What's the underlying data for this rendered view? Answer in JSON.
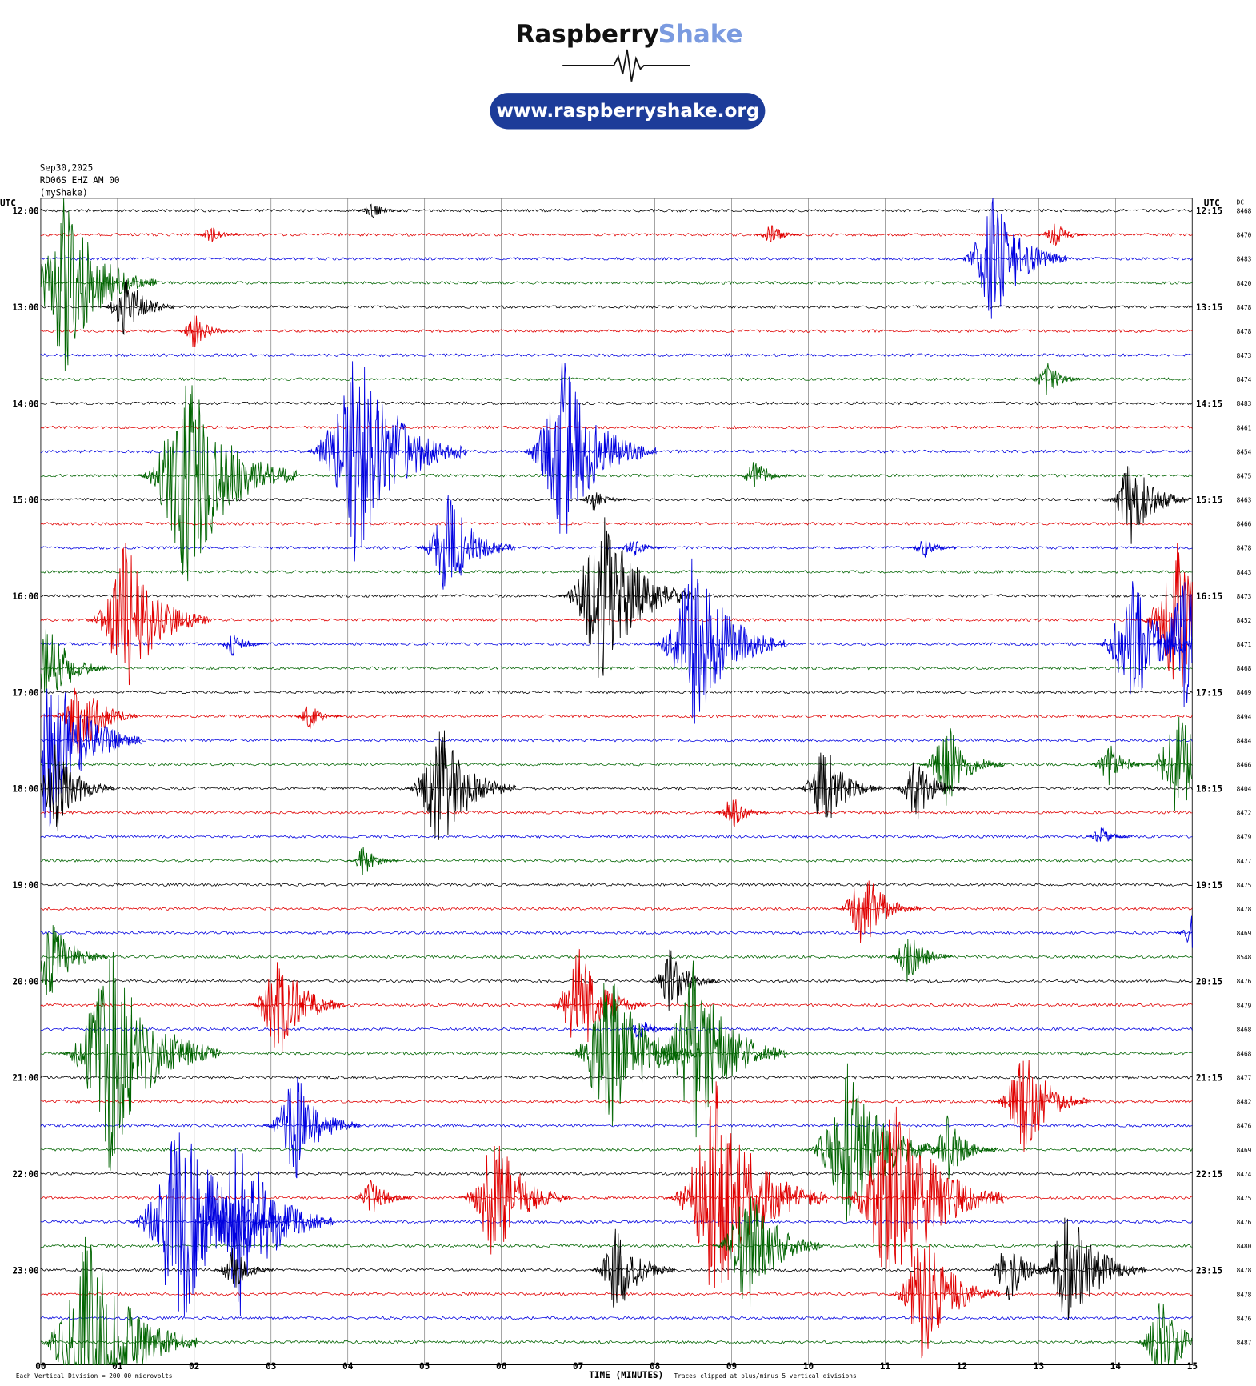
{
  "chart_data": {
    "type": "helicorder",
    "logo": {
      "word1": "Raspberry",
      "word2": "Shake",
      "url": "www.raspberryshake.org"
    },
    "header": [
      "Sep30,2025",
      "RD06S EHZ AM 00",
      "(myShake)"
    ],
    "left_unit": "UTC",
    "right_unit": "UTC",
    "dc_label": "DC",
    "xlabel": "TIME (MINUTES)",
    "note_left": "Each Vertical Division =  200.00 microvolts",
    "note_right": "Traces clipped at plus/minus 5 vertical divisions",
    "colors": [
      "#000000",
      "#e00000",
      "#0000e0",
      "#006400"
    ],
    "xlim": [
      0,
      15
    ],
    "xticks": [
      {
        "value": 0,
        "label": "00"
      },
      {
        "value": 1,
        "label": "01"
      },
      {
        "value": 2,
        "label": "02"
      },
      {
        "value": 3,
        "label": "03"
      },
      {
        "value": 4,
        "label": "04"
      },
      {
        "value": 5,
        "label": "05"
      },
      {
        "value": 6,
        "label": "06"
      },
      {
        "value": 7,
        "label": "07"
      },
      {
        "value": 8,
        "label": "08"
      },
      {
        "value": 9,
        "label": "09"
      },
      {
        "value": 10,
        "label": "10"
      },
      {
        "value": 11,
        "label": "11"
      },
      {
        "value": 12,
        "label": "12"
      },
      {
        "value": 13,
        "label": "13"
      },
      {
        "value": 14,
        "label": "14"
      },
      {
        "value": 15,
        "label": "15"
      }
    ],
    "left_labels": [
      "12:00",
      "13:00",
      "14:00",
      "15:00",
      "16:00",
      "17:00",
      "18:00",
      "19:00",
      "20:00",
      "21:00",
      "22:00",
      "23:00"
    ],
    "right_labels": [
      "12:15",
      "13:15",
      "14:15",
      "15:15",
      "16:15",
      "17:15",
      "18:15",
      "19:15",
      "20:15",
      "21:15",
      "22:15",
      "23:15"
    ],
    "dc": [
      8468,
      8470,
      8483,
      8420,
      8478,
      8478,
      8473,
      8474,
      8483,
      8461,
      8454,
      8475,
      8463,
      8466,
      8478,
      8443,
      8473,
      8452,
      8471,
      8468,
      8469,
      8494,
      8484,
      8466,
      8404,
      8472,
      8479,
      8477,
      8475,
      8478,
      8469,
      8548,
      8476,
      8479,
      8468,
      8468,
      8477,
      8482,
      8476,
      8469,
      8474,
      8475,
      8476,
      8480,
      8478,
      8478,
      8476,
      8487
    ],
    "events": [
      {
        "trace": 0,
        "minute": 4.3,
        "amplitude": 0.4
      },
      {
        "trace": 1,
        "minute": 2.2,
        "amplitude": 0.4
      },
      {
        "trace": 1,
        "minute": 9.5,
        "amplitude": 0.5
      },
      {
        "trace": 1,
        "minute": 13.2,
        "amplitude": 0.6
      },
      {
        "trace": 2,
        "minute": 12.4,
        "amplitude": 3
      },
      {
        "trace": 3,
        "minute": 0.3,
        "amplitude": 4
      },
      {
        "trace": 4,
        "minute": 1.1,
        "amplitude": 1.5
      },
      {
        "trace": 5,
        "minute": 2,
        "amplitude": 0.8
      },
      {
        "trace": 7,
        "minute": 13.1,
        "amplitude": 0.8
      },
      {
        "trace": 10,
        "minute": 4.1,
        "amplitude": 5
      },
      {
        "trace": 10,
        "minute": 6.8,
        "amplitude": 4
      },
      {
        "trace": 11,
        "minute": 1.9,
        "amplitude": 5
      },
      {
        "trace": 11,
        "minute": 9.3,
        "amplitude": 0.8
      },
      {
        "trace": 12,
        "minute": 14.2,
        "amplitude": 2
      },
      {
        "trace": 12,
        "minute": 7.2,
        "amplitude": 0.5
      },
      {
        "trace": 14,
        "minute": 5.3,
        "amplitude": 2.5
      },
      {
        "trace": 14,
        "minute": 7.7,
        "amplitude": 0.5
      },
      {
        "trace": 14,
        "minute": 11.5,
        "amplitude": 0.5
      },
      {
        "trace": 16,
        "minute": 7.3,
        "amplitude": 4
      },
      {
        "trace": 17,
        "minute": 1.1,
        "amplitude": 3.5
      },
      {
        "trace": 17,
        "minute": 14.8,
        "amplitude": 3.5
      },
      {
        "trace": 18,
        "minute": 8.5,
        "amplitude": 4
      },
      {
        "trace": 18,
        "minute": 14.2,
        "amplitude": 3
      },
      {
        "trace": 18,
        "minute": 2.5,
        "amplitude": 0.6
      },
      {
        "trace": 18,
        "minute": 14.9,
        "amplitude": 3
      },
      {
        "trace": 19,
        "minute": 0.1,
        "amplitude": 2
      },
      {
        "trace": 21,
        "minute": 0.5,
        "amplitude": 2
      },
      {
        "trace": 21,
        "minute": 3.5,
        "amplitude": 0.6
      },
      {
        "trace": 22,
        "minute": 0.1,
        "amplitude": 4
      },
      {
        "trace": 23,
        "minute": 11.8,
        "amplitude": 2
      },
      {
        "trace": 23,
        "minute": 14.8,
        "amplitude": 2.5
      },
      {
        "trace": 23,
        "minute": 13.9,
        "amplitude": 1
      },
      {
        "trace": 24,
        "minute": 5.2,
        "amplitude": 3
      },
      {
        "trace": 24,
        "minute": 10.2,
        "amplitude": 2
      },
      {
        "trace": 24,
        "minute": 11.4,
        "amplitude": 1.5
      },
      {
        "trace": 24,
        "minute": 0.2,
        "amplitude": 2
      },
      {
        "trace": 25,
        "minute": 9,
        "amplitude": 0.8
      },
      {
        "trace": 26,
        "minute": 13.8,
        "amplitude": 0.5
      },
      {
        "trace": 27,
        "minute": 4.2,
        "amplitude": 0.7
      },
      {
        "trace": 29,
        "minute": 10.7,
        "amplitude": 2
      },
      {
        "trace": 30,
        "minute": 15,
        "amplitude": 0.8
      },
      {
        "trace": 31,
        "minute": 0.1,
        "amplitude": 2
      },
      {
        "trace": 31,
        "minute": 11.3,
        "amplitude": 1.2
      },
      {
        "trace": 32,
        "minute": 8.2,
        "amplitude": 1.5
      },
      {
        "trace": 33,
        "minute": 3.1,
        "amplitude": 2.5
      },
      {
        "trace": 33,
        "minute": 7,
        "amplitude": 2.5
      },
      {
        "trace": 34,
        "minute": 7.8,
        "amplitude": 0.6
      },
      {
        "trace": 35,
        "minute": 0.9,
        "amplitude": 5
      },
      {
        "trace": 35,
        "minute": 7.4,
        "amplitude": 4
      },
      {
        "trace": 35,
        "minute": 8.5,
        "amplitude": 4
      },
      {
        "trace": 37,
        "minute": 12.8,
        "amplitude": 2.5
      },
      {
        "trace": 38,
        "minute": 3.3,
        "amplitude": 2.5
      },
      {
        "trace": 39,
        "minute": 10.5,
        "amplitude": 4
      },
      {
        "trace": 39,
        "minute": 11.8,
        "amplitude": 1.5
      },
      {
        "trace": 41,
        "minute": 5.9,
        "amplitude": 3
      },
      {
        "trace": 41,
        "minute": 8.8,
        "amplitude": 5
      },
      {
        "trace": 41,
        "minute": 11.1,
        "amplitude": 5
      },
      {
        "trace": 41,
        "minute": 4.3,
        "amplitude": 1
      },
      {
        "trace": 42,
        "minute": 1.8,
        "amplitude": 5
      },
      {
        "trace": 42,
        "minute": 2.6,
        "amplitude": 4
      },
      {
        "trace": 43,
        "minute": 9.2,
        "amplitude": 3
      },
      {
        "trace": 44,
        "minute": 2.5,
        "amplitude": 1
      },
      {
        "trace": 44,
        "minute": 7.5,
        "amplitude": 2
      },
      {
        "trace": 44,
        "minute": 13.4,
        "amplitude": 3
      },
      {
        "trace": 44,
        "minute": 12.6,
        "amplitude": 1.5
      },
      {
        "trace": 45,
        "minute": 11.5,
        "amplitude": 3
      },
      {
        "trace": 47,
        "minute": 0.6,
        "amplitude": 5
      },
      {
        "trace": 47,
        "minute": 14.6,
        "amplitude": 2
      }
    ]
  }
}
